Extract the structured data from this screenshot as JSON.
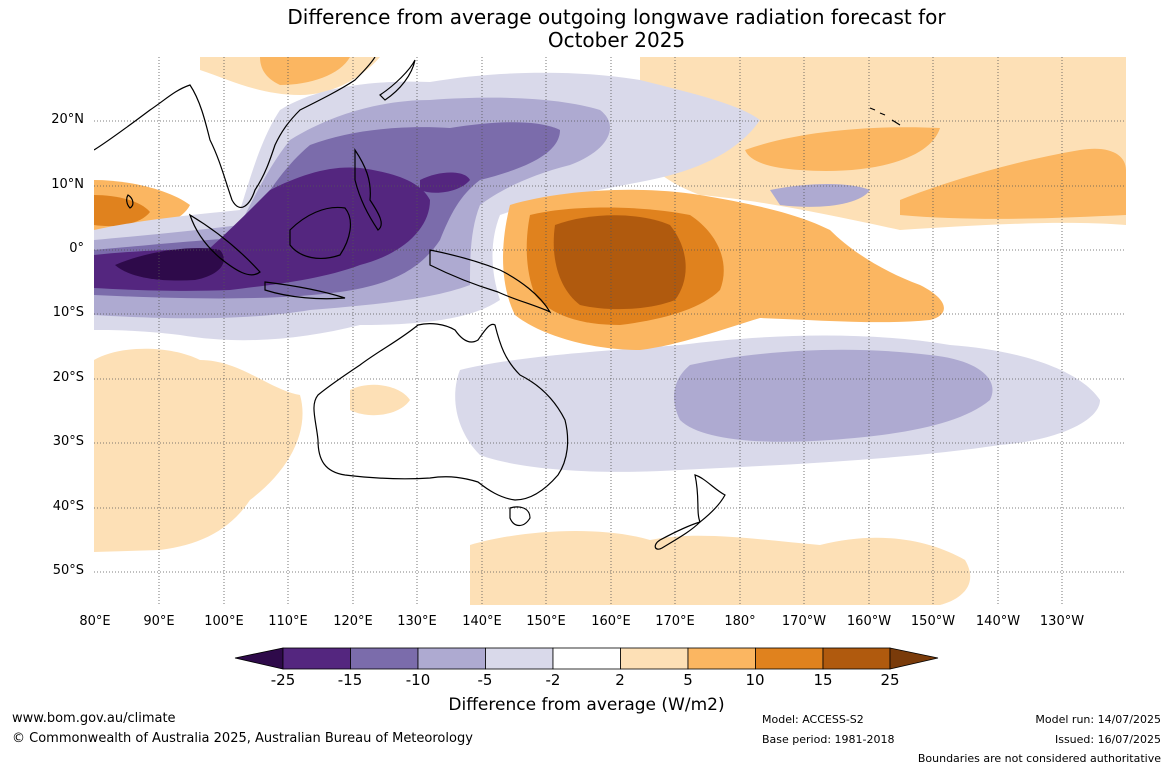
{
  "title": {
    "line1": "Difference from average outgoing longwave radiation forecast for",
    "line2": "October 2025"
  },
  "lat_labels": [
    "20°N",
    "10°N",
    "0°",
    "10°S",
    "20°S",
    "30°S",
    "40°S",
    "50°S"
  ],
  "lon_labels": [
    "80°E",
    "90°E",
    "100°E",
    "110°E",
    "120°E",
    "130°E",
    "140°E",
    "150°E",
    "160°E",
    "170°E",
    "180°",
    "170°W",
    "160°W",
    "150°W",
    "140°W",
    "130°W"
  ],
  "colorbar": {
    "ticks": [
      "-25",
      "-15",
      "-10",
      "-5",
      "-2",
      "2",
      "5",
      "10",
      "15",
      "25"
    ],
    "colors": [
      "#2e0a4a",
      "#54267f",
      "#7b6cab",
      "#aeaad1",
      "#d9d9ea",
      "#ffffff",
      "#fde0b6",
      "#fbb661",
      "#e0821e",
      "#b05a0e",
      "#7a3b0a"
    ],
    "label": "Difference from average (W/m2)"
  },
  "footer": {
    "url": "www.bom.gov.au/climate",
    "copyright": "© Commonwealth of Australia 2025, Australian Bureau of Meteorology",
    "model": "Model: ACCESS-S2",
    "base_period": "Base period: 1981-2018",
    "model_run": "Model run: 14/07/2025",
    "issued": "Issued: 16/07/2025",
    "disclaimer": "Boundaries are not considered authoritative"
  }
}
